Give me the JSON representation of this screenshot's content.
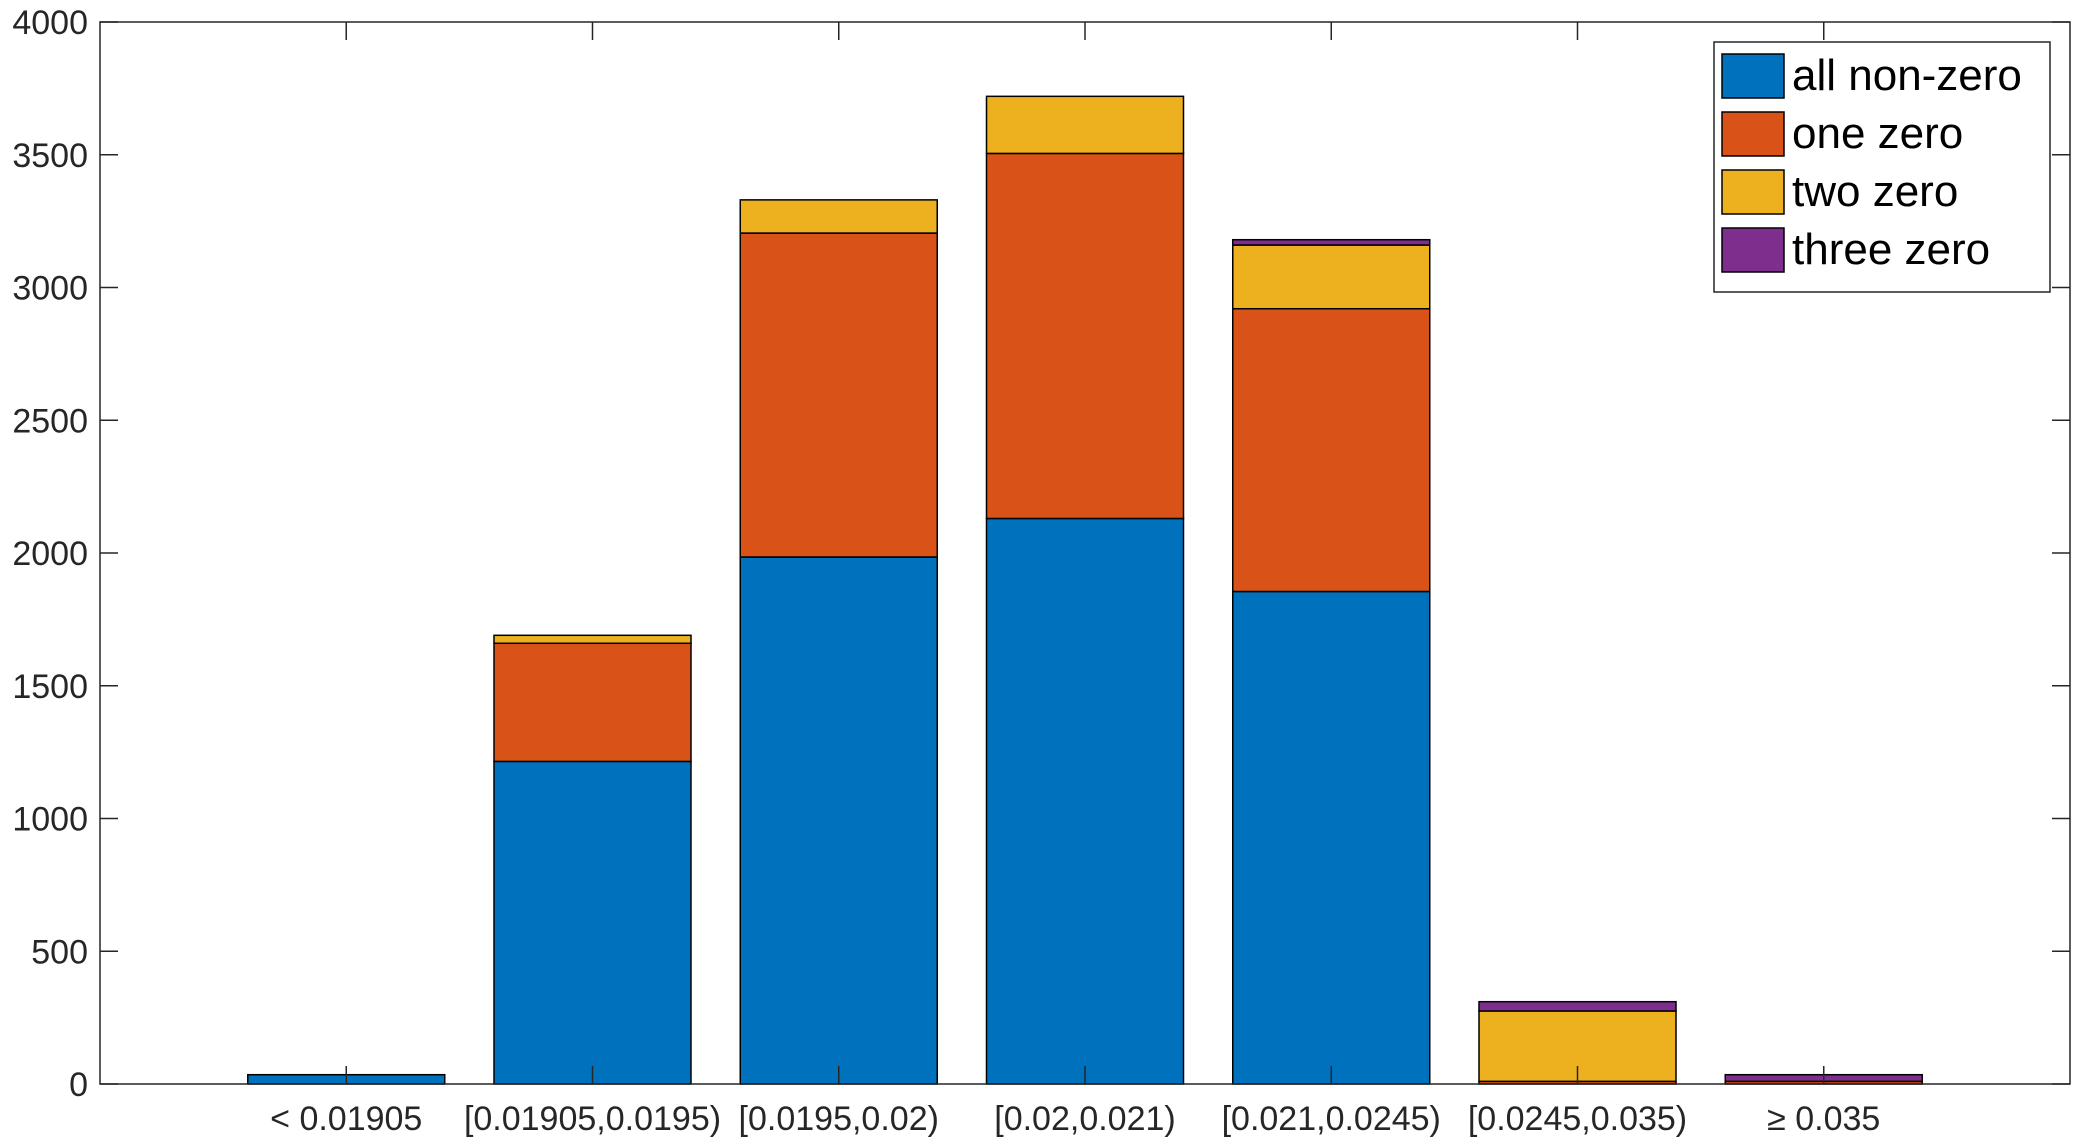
{
  "chart_data": {
    "type": "bar",
    "stacked": true,
    "categories": [
      "< 0.01905",
      "[0.01905,0.0195)",
      "[0.0195,0.02)",
      "[0.02,0.021)",
      "[0.021,0.0245)",
      "[0.0245,0.035)",
      "≥ 0.035"
    ],
    "series": [
      {
        "name": "all non-zero",
        "color": "#0072BD",
        "values": [
          35,
          1215,
          1985,
          2130,
          1855,
          0,
          0
        ]
      },
      {
        "name": "one zero",
        "color": "#D95319",
        "values": [
          0,
          445,
          1220,
          1375,
          1065,
          10,
          10
        ]
      },
      {
        "name": "two zero",
        "color": "#EDB120",
        "values": [
          0,
          30,
          125,
          215,
          240,
          265,
          0
        ]
      },
      {
        "name": "three zero",
        "color": "#7E2F8E",
        "values": [
          0,
          0,
          0,
          0,
          20,
          35,
          25
        ]
      }
    ],
    "title": "",
    "xlabel": "",
    "ylabel": "",
    "ylim": [
      0,
      4000
    ],
    "yticks": [
      0,
      500,
      1000,
      1500,
      2000,
      2500,
      3000,
      3500,
      4000
    ],
    "grid": false,
    "legend_position": "top-right"
  }
}
